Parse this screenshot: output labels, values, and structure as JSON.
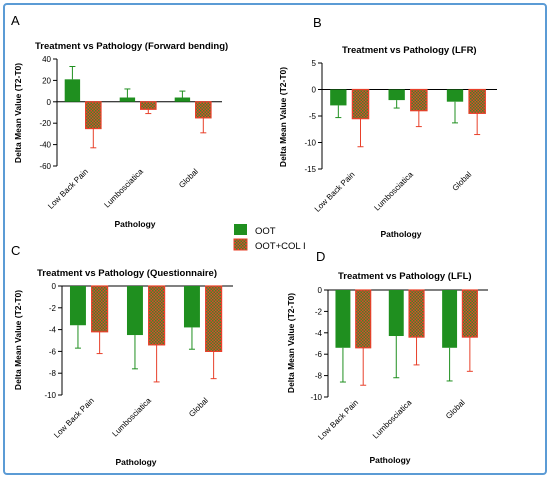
{
  "legend": {
    "items": [
      {
        "label": "OOT",
        "color": "#1f8f1f"
      },
      {
        "label": "OOT+COL I",
        "color": "#e8402a"
      }
    ]
  },
  "chart_data": [
    {
      "panel": "A",
      "type": "bar",
      "title": "Treatment vs Pathology (Forward bending)",
      "xlabel": "Pathology",
      "ylabel": "Delta Mean Value (T2-T0)",
      "categories": [
        "Low Back Pain",
        "Lumbosciatica",
        "Global"
      ],
      "ylim": [
        -60,
        40
      ],
      "yticks": [
        40,
        20,
        0,
        -20,
        -40,
        -60
      ],
      "series": [
        {
          "name": "OOT",
          "values": [
            21,
            4,
            4
          ],
          "error": [
            12,
            8,
            6
          ],
          "color": "#1f8f1f"
        },
        {
          "name": "OOT+COL I",
          "values": [
            -25,
            -7,
            -15
          ],
          "error": [
            18,
            4,
            14
          ],
          "color": "#e8402a"
        }
      ]
    },
    {
      "panel": "B",
      "type": "bar",
      "title": "Treatment vs Pathology (LFR)",
      "xlabel": "Pathology",
      "ylabel": "Delta Mean Value (T2-T0)",
      "categories": [
        "Low Back Pain",
        "Lumbosciatica",
        "Global"
      ],
      "ylim": [
        -15,
        5
      ],
      "yticks": [
        5,
        0,
        -5,
        -10,
        -15
      ],
      "series": [
        {
          "name": "OOT",
          "values": [
            -3,
            -2,
            -2.3
          ],
          "error": [
            2.3,
            1.5,
            4.0
          ],
          "color": "#1f8f1f"
        },
        {
          "name": "OOT+COL I",
          "values": [
            -5.5,
            -4,
            -4.5
          ],
          "error": [
            5.3,
            3.0,
            4.0
          ],
          "color": "#e8402a"
        }
      ]
    },
    {
      "panel": "C",
      "type": "bar",
      "title": "Treatment vs Pathology (Questionnaire)",
      "xlabel": "Pathology",
      "ylabel": "Delta Mean Value (T2-T0)",
      "categories": [
        "Low Back Pain",
        "Lumbosciatica",
        "Global"
      ],
      "ylim": [
        -10,
        0
      ],
      "yticks": [
        0,
        -2,
        -4,
        -6,
        -8,
        -10
      ],
      "series": [
        {
          "name": "OOT",
          "values": [
            -3.6,
            -4.5,
            -3.8
          ],
          "error": [
            2.1,
            3.1,
            2.0
          ],
          "color": "#1f8f1f"
        },
        {
          "name": "OOT+COL I",
          "values": [
            -4.2,
            -5.4,
            -6.0
          ],
          "error": [
            2.0,
            3.4,
            2.5
          ],
          "color": "#e8402a"
        }
      ]
    },
    {
      "panel": "D",
      "type": "bar",
      "title": "Treatment vs Pathology (LFL)",
      "xlabel": "Pathology",
      "ylabel": "Delta Mean Value (T2-T0)",
      "categories": [
        "Low Back Pain",
        "Lumbosciatica",
        "Global"
      ],
      "ylim": [
        -10,
        0
      ],
      "yticks": [
        0,
        -2,
        -4,
        -6,
        -8,
        -10
      ],
      "series": [
        {
          "name": "OOT",
          "values": [
            -5.4,
            -4.3,
            -5.4
          ],
          "error": [
            3.2,
            3.9,
            3.1
          ],
          "color": "#1f8f1f"
        },
        {
          "name": "OOT+COL I",
          "values": [
            -5.4,
            -4.4,
            -4.4
          ],
          "error": [
            3.5,
            2.6,
            3.2
          ],
          "color": "#e8402a"
        }
      ]
    }
  ]
}
